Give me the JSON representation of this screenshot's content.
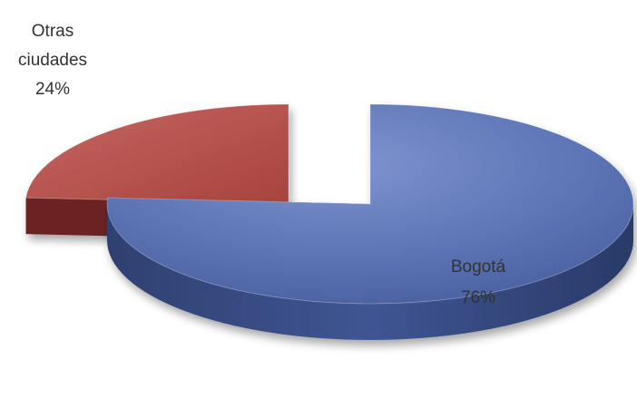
{
  "chart_data": {
    "type": "pie",
    "style": "3d-exploded",
    "title": "",
    "slices": [
      {
        "label": "Bogotá",
        "value": 76,
        "percent_label": "76%",
        "color": "#5b72b3",
        "side_color": "#3a4f8e"
      },
      {
        "label": "Otras ciudades",
        "value": 24,
        "percent_label": "24%",
        "color": "#b9514c",
        "side_color": "#6c2420"
      }
    ]
  }
}
